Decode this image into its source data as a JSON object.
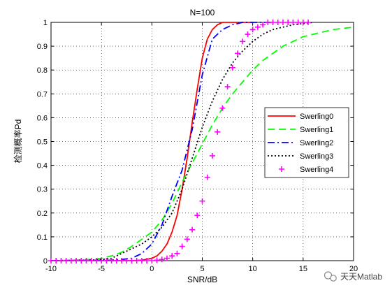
{
  "chart_data": {
    "type": "line",
    "title": "N=100",
    "xlabel": "SNR/dB",
    "ylabel": "检测概率Pd",
    "xlim": [
      -10,
      20
    ],
    "ylim": [
      0,
      1
    ],
    "xticks": [
      "-10",
      "-5",
      "0",
      "5",
      "10",
      "15",
      "20"
    ],
    "yticks": [
      "0",
      "0.1",
      "0.2",
      "0.3",
      "0.4",
      "0.5",
      "0.6",
      "0.7",
      "0.8",
      "0.9",
      "1"
    ],
    "grid": true,
    "legend_position": "right",
    "series": [
      {
        "name": "Swerling0",
        "color": "#ff0000",
        "style": "solid",
        "x": [
          -10,
          -2,
          -1,
          0,
          0.5,
          1,
          1.5,
          2,
          2.5,
          3,
          3.5,
          4,
          4.5,
          5,
          5.5,
          6,
          6.5,
          7,
          8,
          9,
          10
        ],
        "y": [
          0,
          0,
          0.002,
          0.01,
          0.02,
          0.04,
          0.07,
          0.12,
          0.19,
          0.3,
          0.43,
          0.58,
          0.72,
          0.85,
          0.93,
          0.97,
          0.99,
          1.0,
          1.0,
          1.0,
          1.0
        ]
      },
      {
        "name": "Swerling1",
        "color": "#00ff00",
        "style": "dashed",
        "x": [
          -10,
          -8,
          -6,
          -5,
          -4,
          -3,
          -2,
          -1,
          0,
          1,
          2,
          3,
          4,
          5,
          6,
          7,
          8,
          9,
          10,
          11,
          12,
          13,
          14,
          15,
          16,
          17,
          18,
          19,
          20
        ],
        "y": [
          0,
          0.002,
          0.005,
          0.01,
          0.02,
          0.035,
          0.06,
          0.09,
          0.12,
          0.17,
          0.24,
          0.33,
          0.41,
          0.49,
          0.57,
          0.64,
          0.7,
          0.75,
          0.8,
          0.84,
          0.87,
          0.9,
          0.92,
          0.94,
          0.95,
          0.96,
          0.97,
          0.975,
          0.98
        ]
      },
      {
        "name": "Swerling2",
        "color": "#0000ff",
        "style": "dashdot",
        "x": [
          -10,
          -4,
          -3,
          -2,
          -1,
          0,
          1,
          2,
          3,
          4,
          5,
          6,
          7,
          8,
          9,
          10,
          11,
          12
        ],
        "y": [
          0,
          0.002,
          0.005,
          0.01,
          0.03,
          0.07,
          0.15,
          0.27,
          0.38,
          0.55,
          0.78,
          0.93,
          0.97,
          0.99,
          1.0,
          1.0,
          1.0,
          1.0
        ]
      },
      {
        "name": "Swerling3",
        "color": "#000000",
        "style": "dotted",
        "x": [
          -10,
          -6,
          -5,
          -4,
          -3,
          -2,
          -1,
          0,
          1,
          2,
          3,
          4,
          5,
          6,
          7,
          8,
          9,
          10,
          11,
          12,
          13,
          14,
          15,
          16
        ],
        "y": [
          0,
          0.002,
          0.005,
          0.01,
          0.03,
          0.05,
          0.07,
          0.1,
          0.14,
          0.2,
          0.3,
          0.43,
          0.56,
          0.67,
          0.76,
          0.83,
          0.88,
          0.92,
          0.95,
          0.97,
          0.98,
          0.99,
          0.995,
          1.0
        ]
      },
      {
        "name": "Swerling4",
        "color": "#ff00ff",
        "style": "markers",
        "x": [
          -10,
          -9.5,
          -9,
          -8.5,
          -8,
          -7.5,
          -7,
          -6.5,
          -6,
          -5.5,
          -5,
          -4.5,
          -4,
          -3.5,
          -3,
          -2.5,
          -2,
          -1.5,
          -1,
          -0.5,
          0,
          0.5,
          1,
          1.5,
          2,
          2.5,
          3,
          3.5,
          4,
          4.5,
          5,
          5.5,
          6,
          6.5,
          7,
          7.5,
          8,
          8.5,
          9,
          9.5,
          10,
          10.5,
          11,
          11.5,
          12,
          12.5,
          13,
          13.5,
          14,
          14.5,
          15,
          15.5
        ],
        "y": [
          0,
          0,
          0,
          0,
          0,
          0,
          0,
          0,
          0,
          0,
          0,
          0,
          0,
          0,
          0,
          0,
          0,
          0,
          0,
          0,
          0,
          0.002,
          0.005,
          0.01,
          0.02,
          0.03,
          0.06,
          0.09,
          0.13,
          0.19,
          0.25,
          0.35,
          0.44,
          0.54,
          0.64,
          0.73,
          0.81,
          0.87,
          0.92,
          0.95,
          0.97,
          0.98,
          0.99,
          1.0,
          1.0,
          1.0,
          1.0,
          1.0,
          1.0,
          1.0,
          1.0,
          1.0
        ]
      }
    ]
  },
  "watermark": {
    "label": "天天Matlab",
    "icon": "wechat-icon"
  }
}
